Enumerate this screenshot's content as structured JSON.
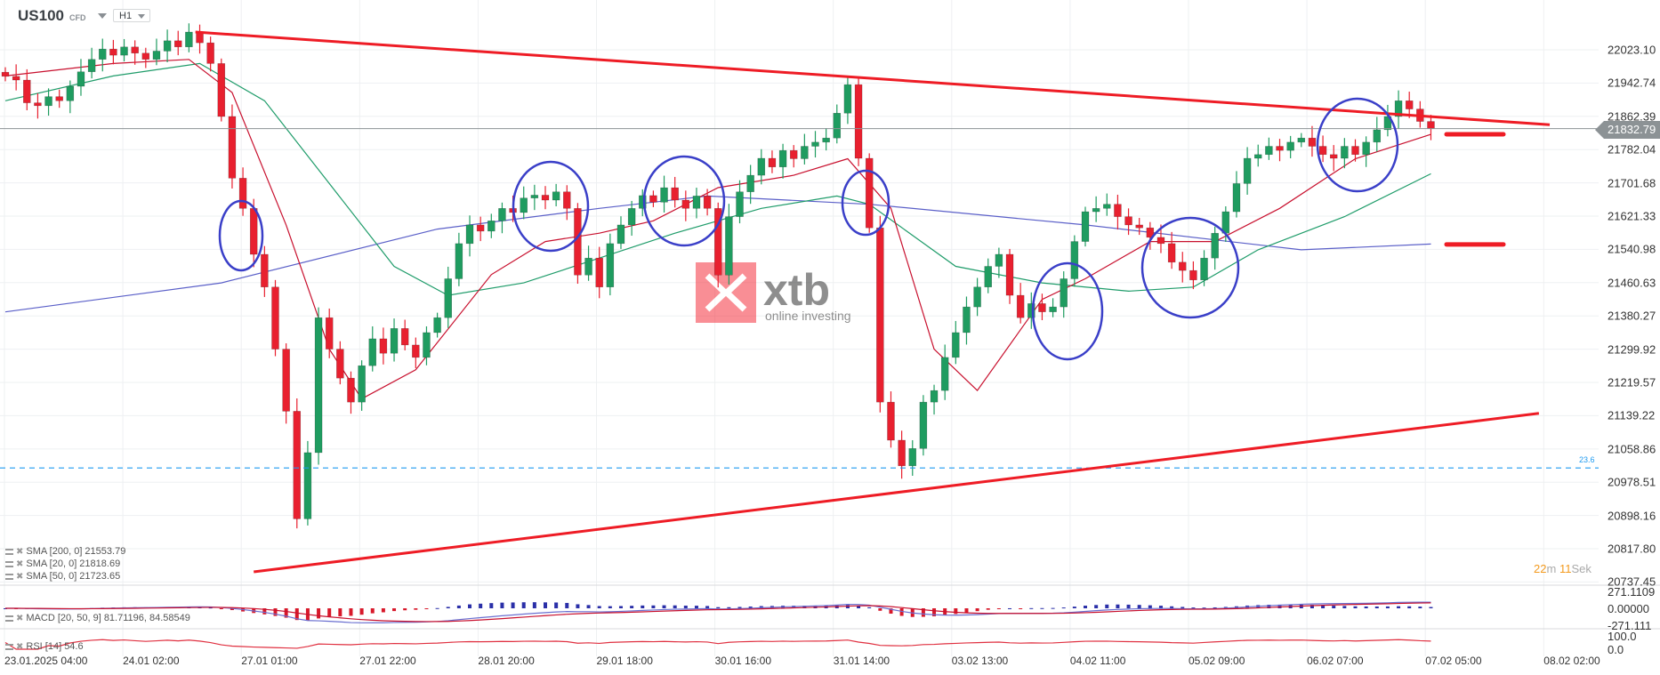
{
  "header": {
    "symbol": "US100",
    "type": "CFD",
    "timeframe": "H1"
  },
  "timer": {
    "minutes": "22",
    "min_unit": "m",
    "seconds": "11",
    "sec_unit": "Sek"
  },
  "current_price": "21832.79",
  "fib_label": "23.6",
  "indicators": {
    "sma200": "SMA  [200,  0]  21553.79",
    "sma20": "SMA  [20,  0]  21818.69",
    "sma50": "SMA  [50,  0]  21723.65",
    "macd": "MACD  [20, 50, 9]  81.71196,  84.58549",
    "rsi": "RSI  [14]  54.6"
  },
  "colors": {
    "up": "#1f9c60",
    "down": "#e8202f",
    "sma20": "#c8102e",
    "sma50": "#1f9c6a",
    "sma200": "#5a5fc8",
    "trend": "#ee1c25",
    "annotation": "#3a3fc8",
    "fib": "#1e9af0"
  },
  "watermark": {
    "brand": "xtb",
    "tagline": "online investing"
  },
  "chart_data": {
    "type": "candlestick",
    "title": "",
    "y_ticks": [
      "22023.10",
      "21942.74",
      "21862.39",
      "21782.04",
      "21701.68",
      "21621.33",
      "21540.98",
      "21460.63",
      "21380.27",
      "21299.92",
      "21219.57",
      "21139.22",
      "21058.86",
      "20978.51",
      "20898.16",
      "20817.80",
      "20737.45"
    ],
    "x_ticks": [
      "23.01.2025  04:00",
      "24.01  02:00",
      "27.01  01:00",
      "27.01  22:00",
      "28.01  20:00",
      "29.01  18:00",
      "30.01  16:00",
      "31.01  14:00",
      "03.02  13:00",
      "04.02  11:00",
      "05.02  09:00",
      "06.02  07:00",
      "07.02  05:00",
      "08.02  02:00"
    ],
    "ylim": [
      20737.45,
      22100
    ],
    "grid": true,
    "close": [
      21959,
      21950,
      21895,
      21888,
      21910,
      21900,
      21935,
      21970,
      22000,
      22025,
      22010,
      22030,
      22015,
      22000,
      22020,
      22045,
      22030,
      22066,
      22040,
      21990,
      21862,
      21713,
      21640,
      21529,
      21450,
      21300,
      21150,
      20890,
      21050,
      21376,
      21300,
      21230,
      21172,
      21260,
      21325,
      21290,
      21350,
      21310,
      21280,
      21340,
      21376,
      21470,
      21555,
      21600,
      21585,
      21610,
      21640,
      21630,
      21665,
      21672,
      21660,
      21680,
      21640,
      21479,
      21520,
      21450,
      21555,
      21600,
      21640,
      21671,
      21655,
      21690,
      21660,
      21640,
      21670,
      21640,
      21479,
      21620,
      21680,
      21720,
      21761,
      21740,
      21780,
      21760,
      21790,
      21800,
      21810,
      21870,
      21939,
      21761,
      21593,
      21172,
      21080,
      21018,
      21060,
      21172,
      21200,
      21280,
      21340,
      21402,
      21450,
      21500,
      21529,
      21430,
      21376,
      21410,
      21390,
      21402,
      21470,
      21560,
      21632,
      21640,
      21650,
      21620,
      21600,
      21593,
      21570,
      21555,
      21510,
      21490,
      21467,
      21520,
      21580,
      21632,
      21700,
      21761,
      21770,
      21790,
      21780,
      21800,
      21810,
      21790,
      21770,
      21761,
      21790,
      21770,
      21800,
      21830,
      21862,
      21900,
      21880,
      21850,
      21832.79
    ],
    "sma200": [
      [
        0,
        21390
      ],
      [
        20,
        21460
      ],
      [
        40,
        21590
      ],
      [
        55,
        21640
      ],
      [
        65,
        21670
      ],
      [
        80,
        21650
      ],
      [
        100,
        21600
      ],
      [
        120,
        21540
      ],
      [
        132,
        21553.79
      ]
    ],
    "sma20": [
      [
        0,
        21960
      ],
      [
        10,
        21990
      ],
      [
        17,
        22000
      ],
      [
        21,
        21920
      ],
      [
        26,
        21600
      ],
      [
        30,
        21300
      ],
      [
        33,
        21180
      ],
      [
        38,
        21250
      ],
      [
        45,
        21480
      ],
      [
        50,
        21560
      ],
      [
        55,
        21580
      ],
      [
        60,
        21610
      ],
      [
        66,
        21690
      ],
      [
        73,
        21720
      ],
      [
        78,
        21760
      ],
      [
        82,
        21640
      ],
      [
        86,
        21300
      ],
      [
        90,
        21200
      ],
      [
        96,
        21420
      ],
      [
        100,
        21470
      ],
      [
        106,
        21560
      ],
      [
        112,
        21560
      ],
      [
        118,
        21640
      ],
      [
        125,
        21760
      ],
      [
        132,
        21818.69
      ]
    ],
    "sma50": [
      [
        0,
        21900
      ],
      [
        10,
        21960
      ],
      [
        18,
        21990
      ],
      [
        24,
        21900
      ],
      [
        30,
        21700
      ],
      [
        36,
        21500
      ],
      [
        41,
        21430
      ],
      [
        48,
        21460
      ],
      [
        55,
        21520
      ],
      [
        62,
        21580
      ],
      [
        70,
        21640
      ],
      [
        77,
        21670
      ],
      [
        80,
        21650
      ],
      [
        88,
        21500
      ],
      [
        96,
        21460
      ],
      [
        104,
        21440
      ],
      [
        110,
        21450
      ],
      [
        116,
        21540
      ],
      [
        124,
        21620
      ],
      [
        132,
        21723.65
      ]
    ],
    "trendlines": [
      {
        "from": [
          17.6,
          22066
        ],
        "to": [
          143,
          21842
        ]
      },
      {
        "from": [
          23,
          20762
        ],
        "to": [
          142,
          21145
        ]
      }
    ],
    "fib_level": 21013,
    "target_levels": [
      21819,
      21553
    ],
    "macd_ticks": [
      "271.1109",
      "0.00000",
      "-271.111"
    ],
    "rsi_ticks": [
      "100.0",
      "0.0"
    ]
  }
}
